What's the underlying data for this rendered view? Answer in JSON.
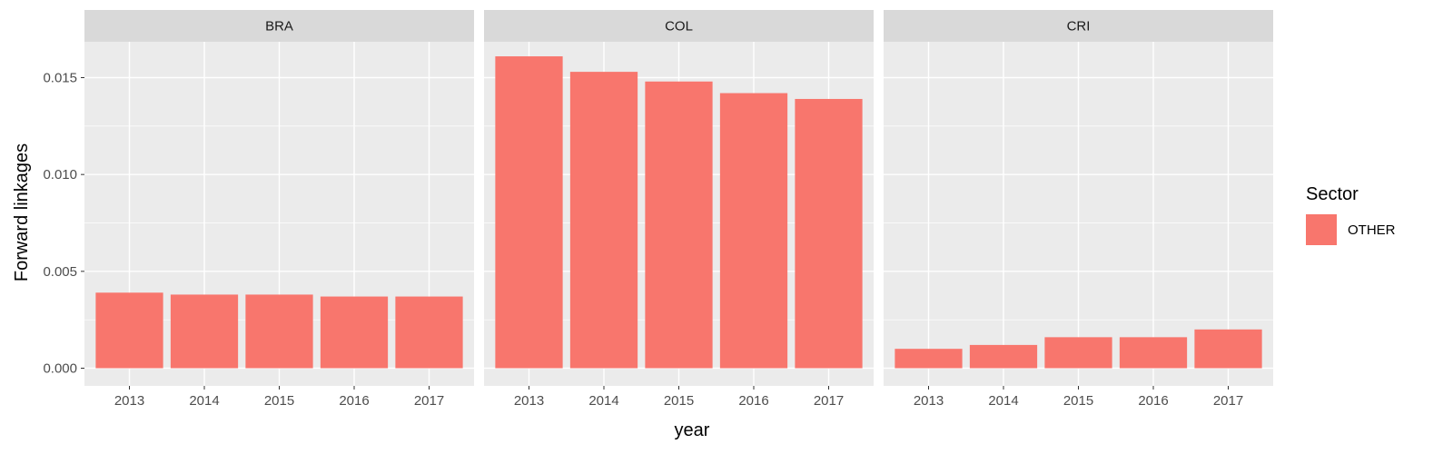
{
  "chart_data": {
    "type": "bar",
    "facet_variable": "country",
    "xlabel": "year",
    "ylabel": "Forward linkages",
    "categories": [
      "2013",
      "2014",
      "2015",
      "2016",
      "2017"
    ],
    "ylim": [
      0,
      0.017
    ],
    "y_ticks": [
      "0.000",
      "0.005",
      "0.010",
      "0.015"
    ],
    "grid": true,
    "bar_color": "#F8766D",
    "panel_background": "#EBEBEB",
    "strip_background": "#D9D9D9",
    "legend": {
      "title": "Sector",
      "position": "right",
      "entries": [
        {
          "label": "OTHER",
          "color": "#F8766D"
        }
      ]
    },
    "facets": [
      {
        "name": "BRA",
        "values": [
          0.0039,
          0.0038,
          0.0038,
          0.0037,
          0.0037
        ]
      },
      {
        "name": "COL",
        "values": [
          0.0161,
          0.0153,
          0.0148,
          0.0142,
          0.0139
        ]
      },
      {
        "name": "CRI",
        "values": [
          0.001,
          0.0012,
          0.0016,
          0.0016,
          0.002
        ]
      }
    ]
  }
}
